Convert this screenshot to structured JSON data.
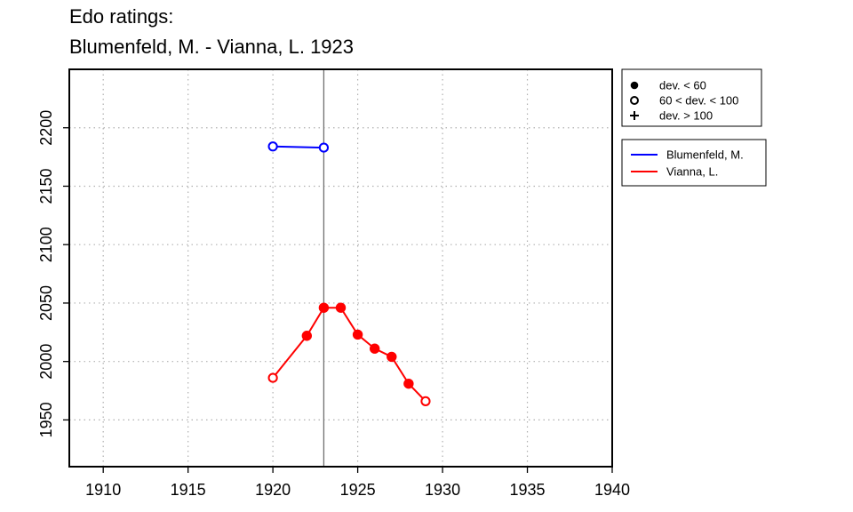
{
  "title_line1": "Edo ratings:",
  "title_line2": "Blumenfeld, M. - Vianna, L. 1923",
  "chart_data": {
    "type": "line",
    "title": "Edo ratings: Blumenfeld, M. - Vianna, L. 1923",
    "xlabel": "",
    "ylabel": "",
    "xlim": [
      1908,
      1940
    ],
    "ylim": [
      1910,
      2250
    ],
    "x_ticks": [
      1910,
      1915,
      1920,
      1925,
      1930,
      1935,
      1940
    ],
    "y_ticks": [
      1950,
      2000,
      2050,
      2100,
      2150,
      2200
    ],
    "grid": true,
    "reference_line_x": 1923,
    "series": [
      {
        "name": "Blumenfeld, M.",
        "color": "#0000ff",
        "points": [
          {
            "x": 1920,
            "y": 2184,
            "marker": "open"
          },
          {
            "x": 1923,
            "y": 2183,
            "marker": "open"
          }
        ]
      },
      {
        "name": "Vianna, L.",
        "color": "#ff0000",
        "points": [
          {
            "x": 1920,
            "y": 1986,
            "marker": "open"
          },
          {
            "x": 1922,
            "y": 2022,
            "marker": "filled"
          },
          {
            "x": 1923,
            "y": 2046,
            "marker": "filled"
          },
          {
            "x": 1924,
            "y": 2046,
            "marker": "filled"
          },
          {
            "x": 1925,
            "y": 2023,
            "marker": "filled"
          },
          {
            "x": 1926,
            "y": 2011,
            "marker": "filled"
          },
          {
            "x": 1927,
            "y": 2004,
            "marker": "filled"
          },
          {
            "x": 1928,
            "y": 1981,
            "marker": "filled"
          },
          {
            "x": 1929,
            "y": 1966,
            "marker": "open"
          }
        ]
      }
    ],
    "marker_legend": [
      {
        "symbol": "filled",
        "label": "dev. < 60"
      },
      {
        "symbol": "open",
        "label": "60 < dev. < 100"
      },
      {
        "symbol": "plus",
        "label": "dev. > 100"
      }
    ],
    "legend_placement": "right"
  }
}
